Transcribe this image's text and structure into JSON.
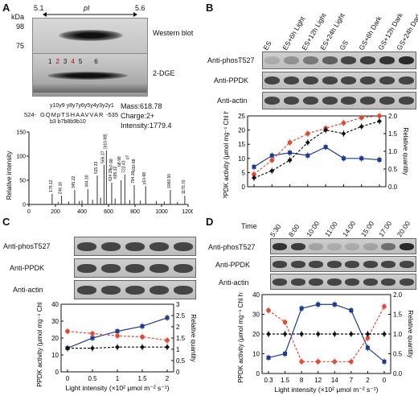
{
  "panelA": {
    "letter": "A",
    "pI_label": "pI",
    "pI_low": "5.1",
    "pI_high": "5.6",
    "kda_label": "kDa",
    "kda_98": "98",
    "kda_75": "75",
    "western_label": "Western blot",
    "dge_label": "2-DGE",
    "spots": [
      "1",
      "2",
      "3",
      "4",
      "5",
      "6"
    ],
    "ms_info": {
      "mass": "Mass:618.78",
      "charge": "Charge:2+",
      "intensity": "Intensity:1779.4"
    },
    "peptide": {
      "start": "524-",
      "seq": "GQMpTSHAAVVAR",
      "end": "-535"
    },
    "y_ions": "y10y9 y8y7y6y5y4y3y2y1",
    "b_ions": "b3 b7b8b9b10",
    "ms_ylabel": "Relative intensity",
    "ms_y_ticks": [
      "0",
      "50",
      "100",
      "150"
    ],
    "ms_x_ticks": [
      "0",
      "200",
      "400",
      "600",
      "800",
      "1000",
      "1200"
    ],
    "peak_labels": [
      "175.12",
      "246.16",
      "345.22",
      "444.30",
      "515.33",
      "566.37",
      "[b10-98]",
      "624.28",
      "695.32",
      "723.43",
      "794.36",
      "b8-98",
      "b7-98",
      "y10-98",
      "b10-98",
      "y7",
      "1066.50",
      "1175.70"
    ]
  },
  "panelB": {
    "letter": "B",
    "lanes": [
      "ES",
      "ES+6h Light",
      "ES+12h Light",
      "ES+24h Light",
      "GS",
      "GS+6h Dark",
      "GS+12h Dark",
      "GS+24h Dark"
    ],
    "blots": [
      "Anti-phosT527",
      "Anti-PPDK",
      "Anti-actin"
    ]
  },
  "panelC": {
    "letter": "C",
    "blots": [
      "Anti-phosT527",
      "Anti-PPDK",
      "Anti-actin"
    ]
  },
  "panelD": {
    "letter": "D",
    "time_label": "Time",
    "times": [
      "5:30",
      "8:00",
      "10:00",
      "11:00",
      "14:00",
      "15:00",
      "17:00",
      "20:00"
    ],
    "blots": [
      "Anti-phosT527",
      "Anti-PPDK",
      "Anti-actin"
    ]
  },
  "chart_data": [
    {
      "id": "B",
      "type": "line",
      "categories": [
        "",
        "",
        "",
        "",
        "",
        "",
        "",
        ""
      ],
      "ylabel": "PPDK activity (μmol mg⁻¹ Chl h⁻¹)",
      "y2label": "Relative quantity",
      "ylim": [
        0,
        25
      ],
      "y_ticks": [
        0,
        5,
        10,
        15,
        20,
        25
      ],
      "y2lim": [
        0,
        2.0
      ],
      "y2_ticks": [
        0.0,
        0.5,
        1.0,
        1.5,
        2.0
      ],
      "series": [
        {
          "axis": "left",
          "color": "#1f3a93",
          "marker": "square",
          "dash": false,
          "values": [
            7,
            11,
            12,
            11,
            14,
            10,
            10,
            9.5
          ]
        },
        {
          "axis": "right",
          "color": "#e34a33",
          "marker": "circle",
          "dash": true,
          "values": [
            0.35,
            0.75,
            1.25,
            1.5,
            1.65,
            1.8,
            1.95,
            2.0
          ]
        },
        {
          "axis": "right",
          "color": "#111111",
          "marker": "diamond",
          "dash": true,
          "values": [
            0.25,
            0.45,
            0.75,
            1.25,
            1.6,
            1.5,
            1.7,
            1.85
          ]
        }
      ]
    },
    {
      "id": "C",
      "type": "line",
      "categories": [
        "0",
        "0.5",
        "1",
        "1.5",
        "2"
      ],
      "xlabel": "Light intensity (×10² μmol m⁻² s⁻¹)",
      "ylabel": "PPDK activity (μmol mg⁻¹ Chl h⁻¹)",
      "y2label": "Relative quantity",
      "ylim": [
        0,
        40
      ],
      "y_ticks": [
        0,
        10,
        20,
        30,
        40
      ],
      "y2lim": [
        0,
        3
      ],
      "y2_ticks": [
        0,
        0.5,
        1,
        1.5,
        2,
        2.5,
        3
      ],
      "series": [
        {
          "axis": "left",
          "color": "#1f3a93",
          "marker": "square",
          "dash": false,
          "values": [
            14,
            20,
            24,
            27,
            32
          ]
        },
        {
          "axis": "right",
          "color": "#e34a33",
          "marker": "circle",
          "dash": true,
          "values": [
            1.8,
            1.7,
            1.6,
            1.55,
            1.4
          ]
        },
        {
          "axis": "right",
          "color": "#111111",
          "marker": "diamond",
          "dash": true,
          "values": [
            1.05,
            1.05,
            1.1,
            1.1,
            1.1
          ]
        }
      ]
    },
    {
      "id": "D",
      "type": "line",
      "categories": [
        "0.3",
        "1.5",
        "8",
        "12",
        "14",
        "7",
        "2",
        "0"
      ],
      "xlabel": "Light intensity (×10² μmol m⁻² s⁻¹)",
      "ylabel": "PPDK activity (μmol mg⁻¹ Chl h⁻¹)",
      "y2label": "Relative quantity",
      "ylim": [
        0,
        40
      ],
      "y_ticks": [
        0,
        10,
        20,
        30,
        40
      ],
      "y2lim": [
        0,
        2.0
      ],
      "y2_ticks": [
        0,
        0.5,
        1.0,
        1.5,
        2.0
      ],
      "series": [
        {
          "axis": "left",
          "color": "#1f3a93",
          "marker": "square",
          "dash": false,
          "values": [
            8,
            10,
            33,
            35,
            35,
            32,
            13,
            6
          ]
        },
        {
          "axis": "right",
          "color": "#e34a33",
          "marker": "circle",
          "dash": true,
          "values": [
            1.6,
            1.3,
            0.3,
            0.3,
            0.3,
            0.3,
            0.9,
            1.7
          ]
        },
        {
          "axis": "right",
          "color": "#111111",
          "marker": "diamond",
          "dash": true,
          "values": [
            1.0,
            1.0,
            1.0,
            1.0,
            1.0,
            1.0,
            1.0,
            1.0
          ]
        }
      ]
    }
  ]
}
